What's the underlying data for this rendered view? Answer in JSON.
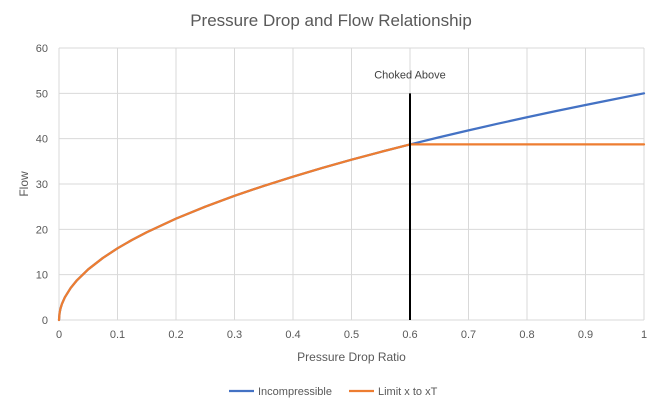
{
  "chart_data": {
    "type": "line",
    "title": "Pressure Drop and Flow Relationship",
    "xlabel": "Pressure Drop Ratio",
    "ylabel": "Flow",
    "xlim": [
      0,
      1
    ],
    "ylim": [
      0,
      60
    ],
    "xticks": [
      0,
      0.1,
      0.2,
      0.3,
      0.4,
      0.5,
      0.6,
      0.7,
      0.8,
      0.9,
      1
    ],
    "xtick_labels": [
      "0",
      "0.1",
      "0.2",
      "0.3",
      "0.4",
      "0.5",
      "0.6",
      "0.7",
      "0.8",
      "0.9",
      "1"
    ],
    "yticks": [
      0,
      10,
      20,
      30,
      40,
      50,
      60
    ],
    "ytick_labels": [
      "0",
      "10",
      "20",
      "30",
      "40",
      "50",
      "60"
    ],
    "grid": true,
    "legend_position": "bottom",
    "x": [
      0,
      0.001,
      0.0025,
      0.005,
      0.01,
      0.02,
      0.03,
      0.05,
      0.075,
      0.1,
      0.125,
      0.15,
      0.2,
      0.25,
      0.3,
      0.35,
      0.4,
      0.45,
      0.5,
      0.55,
      0.6,
      0.65,
      0.7,
      0.75,
      0.8,
      0.85,
      0.9,
      0.95,
      1.0
    ],
    "series": [
      {
        "name": "Incompressible",
        "color": "#4472C4",
        "values": [
          0,
          1.58,
          2.5,
          3.54,
          5.0,
          7.07,
          8.66,
          11.18,
          13.69,
          15.81,
          17.68,
          19.36,
          22.36,
          25.0,
          27.39,
          29.58,
          31.62,
          33.54,
          35.36,
          37.08,
          38.73,
          40.31,
          41.83,
          43.3,
          44.72,
          46.1,
          47.43,
          48.73,
          50.0
        ]
      },
      {
        "name": "Limit x to xT",
        "color": "#ED7D31",
        "values": [
          0,
          1.58,
          2.5,
          3.54,
          5.0,
          7.07,
          8.66,
          11.18,
          13.69,
          15.81,
          17.68,
          19.36,
          22.36,
          25.0,
          27.39,
          29.58,
          31.62,
          33.54,
          35.36,
          37.08,
          38.73,
          38.73,
          38.73,
          38.73,
          38.73,
          38.73,
          38.73,
          38.73,
          38.73
        ]
      }
    ],
    "annotations": [
      {
        "text": "Choked Above",
        "x": 0.6,
        "y_from": 0,
        "y_to": 50,
        "color": "#000000"
      }
    ]
  }
}
